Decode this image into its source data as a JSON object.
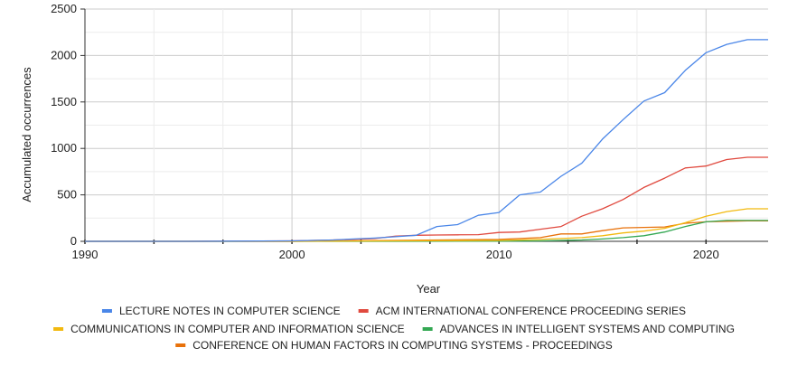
{
  "chart_data": {
    "type": "line",
    "title": "",
    "xlabel": "Year",
    "ylabel": "Accumulated occurrences",
    "xlim": [
      1990,
      2023
    ],
    "ylim": [
      0,
      2500
    ],
    "x_ticks": [
      1990,
      2000,
      2010,
      2020
    ],
    "y_ticks": [
      0,
      500,
      1000,
      1500,
      2000,
      2500
    ],
    "grid": true,
    "legend_position": "bottom",
    "series": [
      {
        "name": "LECTURE NOTES IN COMPUTER SCIENCE",
        "color": "#4a86e8",
        "x": [
          1990,
          1995,
          2000,
          2001,
          2002,
          2003,
          2004,
          2005,
          2006,
          2007,
          2008,
          2009,
          2010,
          2011,
          2012,
          2013,
          2014,
          2015,
          2016,
          2017,
          2018,
          2019,
          2020,
          2021,
          2022,
          2023
        ],
        "y": [
          0,
          0,
          5,
          10,
          15,
          25,
          35,
          50,
          65,
          160,
          180,
          280,
          310,
          500,
          530,
          700,
          840,
          1100,
          1310,
          1510,
          1600,
          1840,
          2030,
          2120,
          2170,
          2170
        ]
      },
      {
        "name": "ACM INTERNATIONAL CONFERENCE PROCEEDING SERIES",
        "color": "#e0493e",
        "x": [
          1990,
          1995,
          2000,
          2001,
          2002,
          2003,
          2004,
          2005,
          2006,
          2007,
          2008,
          2009,
          2010,
          2011,
          2012,
          2013,
          2014,
          2015,
          2016,
          2017,
          2018,
          2019,
          2020,
          2021,
          2022,
          2023
        ],
        "y": [
          0,
          0,
          5,
          10,
          15,
          20,
          30,
          55,
          65,
          68,
          70,
          72,
          95,
          100,
          130,
          160,
          270,
          350,
          450,
          580,
          680,
          790,
          810,
          880,
          905,
          905
        ]
      },
      {
        "name": "COMMUNICATIONS IN COMPUTER AND INFORMATION SCIENCE",
        "color": "#f2b90f",
        "x": [
          1990,
          1995,
          2000,
          2005,
          2010,
          2011,
          2012,
          2013,
          2014,
          2015,
          2016,
          2017,
          2018,
          2019,
          2020,
          2021,
          2022,
          2023
        ],
        "y": [
          0,
          0,
          0,
          5,
          10,
          15,
          20,
          30,
          40,
          60,
          90,
          110,
          140,
          200,
          270,
          320,
          350,
          350
        ]
      },
      {
        "name": "ADVANCES IN INTELLIGENT SYSTEMS AND COMPUTING",
        "color": "#34a853",
        "x": [
          1990,
          1995,
          2000,
          2005,
          2010,
          2012,
          2013,
          2014,
          2015,
          2016,
          2017,
          2018,
          2019,
          2020,
          2021,
          2022,
          2023
        ],
        "y": [
          0,
          0,
          0,
          0,
          2,
          5,
          10,
          15,
          25,
          40,
          60,
          100,
          160,
          210,
          225,
          225,
          225
        ]
      },
      {
        "name": "CONFERENCE ON HUMAN FACTORS IN COMPUTING SYSTEMS - PROCEEDINGS",
        "color": "#e8710a",
        "x": [
          1990,
          1995,
          2000,
          2005,
          2010,
          2011,
          2012,
          2013,
          2014,
          2015,
          2016,
          2017,
          2018,
          2019,
          2020,
          2021,
          2022,
          2023
        ],
        "y": [
          0,
          0,
          0,
          10,
          20,
          30,
          40,
          80,
          80,
          115,
          145,
          150,
          155,
          195,
          210,
          215,
          220,
          220
        ]
      }
    ]
  }
}
